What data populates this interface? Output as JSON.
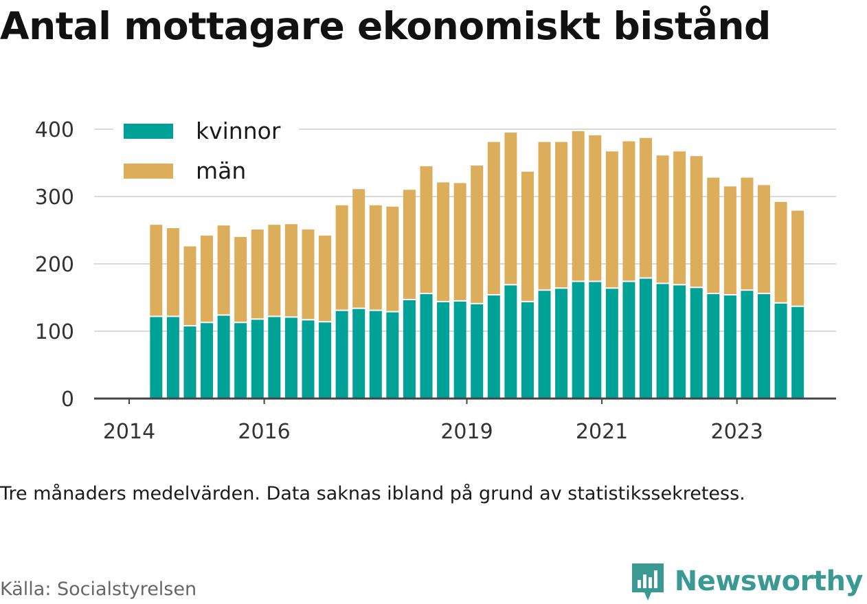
{
  "title": "Antal mottagare ekonomiskt bistånd",
  "note": "Tre månaders medelvärden. Data saknas ibland på grund av statistikssekretess.",
  "source": "Källa: Socialstyrelsen",
  "brand": "Newsworthy",
  "colors": {
    "kvinnor": "#00a196",
    "man": "#dcad5a",
    "brand": "#3a9a93",
    "grid": "#d9d9d9",
    "axis": "#444444"
  },
  "chart_data": {
    "type": "bar",
    "stacked": true,
    "ylim": [
      0,
      400
    ],
    "yticks": [
      0,
      100,
      200,
      300,
      400
    ],
    "xticks": [
      "2014",
      "2016",
      "2019",
      "2021",
      "2023"
    ],
    "legend_position": "top-left",
    "grid": true,
    "series": [
      {
        "name": "kvinnor",
        "color": "#00a196",
        "values": [
          121,
          121,
          107,
          112,
          123,
          112,
          117,
          121,
          120,
          116,
          113,
          130,
          133,
          130,
          128,
          146,
          155,
          143,
          144,
          140,
          153,
          168,
          143,
          160,
          163,
          173,
          173,
          163,
          173,
          178,
          170,
          168,
          164,
          155,
          153,
          160,
          155,
          141,
          136
        ]
      },
      {
        "name": "män",
        "color": "#dcad5a",
        "values": [
          137,
          132,
          119,
          130,
          134,
          128,
          134,
          137,
          139,
          135,
          129,
          157,
          178,
          157,
          157,
          164,
          190,
          178,
          176,
          206,
          228,
          227,
          194,
          221,
          218,
          224,
          218,
          204,
          209,
          209,
          191,
          199,
          196,
          173,
          162,
          168,
          162,
          151,
          143
        ]
      }
    ],
    "x_positions": [
      2014.4,
      2014.65,
      2014.9,
      2015.15,
      2015.4,
      2015.65,
      2015.9,
      2016.15,
      2016.4,
      2016.65,
      2016.9,
      2017.15,
      2017.4,
      2017.65,
      2017.9,
      2018.15,
      2018.4,
      2018.65,
      2018.9,
      2019.15,
      2019.4,
      2019.65,
      2019.9,
      2020.15,
      2020.4,
      2020.65,
      2020.9,
      2021.15,
      2021.4,
      2021.65,
      2021.9,
      2022.15,
      2022.4,
      2022.65,
      2022.9,
      2023.15,
      2023.4,
      2023.65,
      2023.9
    ]
  }
}
